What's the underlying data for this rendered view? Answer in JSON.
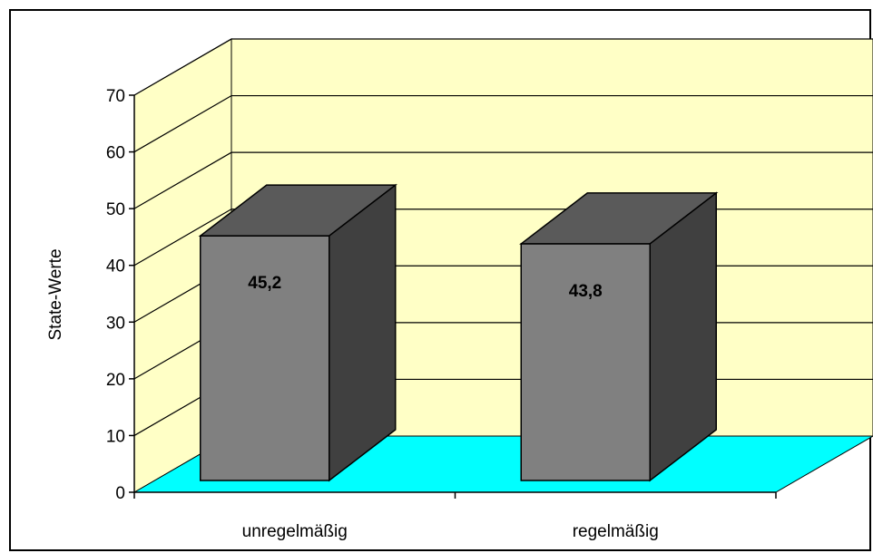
{
  "chart_data": {
    "type": "bar",
    "style": "3d-column",
    "categories": [
      "unregelmäßig",
      "regelmäßig"
    ],
    "values": [
      45.2,
      43.8
    ],
    "data_labels": [
      "45,2",
      "43,8"
    ],
    "title": "",
    "xlabel": "",
    "ylabel": "State-Werte",
    "ylim": [
      0,
      70
    ],
    "yticks": [
      "0",
      "10",
      "20",
      "30",
      "40",
      "50",
      "60",
      "70"
    ],
    "grid": true,
    "legend": "none",
    "colors": {
      "wall": "#ffffc6",
      "floor": "#00ffff",
      "bar_front": "#808080",
      "bar_top": "#5a5a5a",
      "bar_side": "#404040",
      "gridline": "#000000"
    }
  }
}
